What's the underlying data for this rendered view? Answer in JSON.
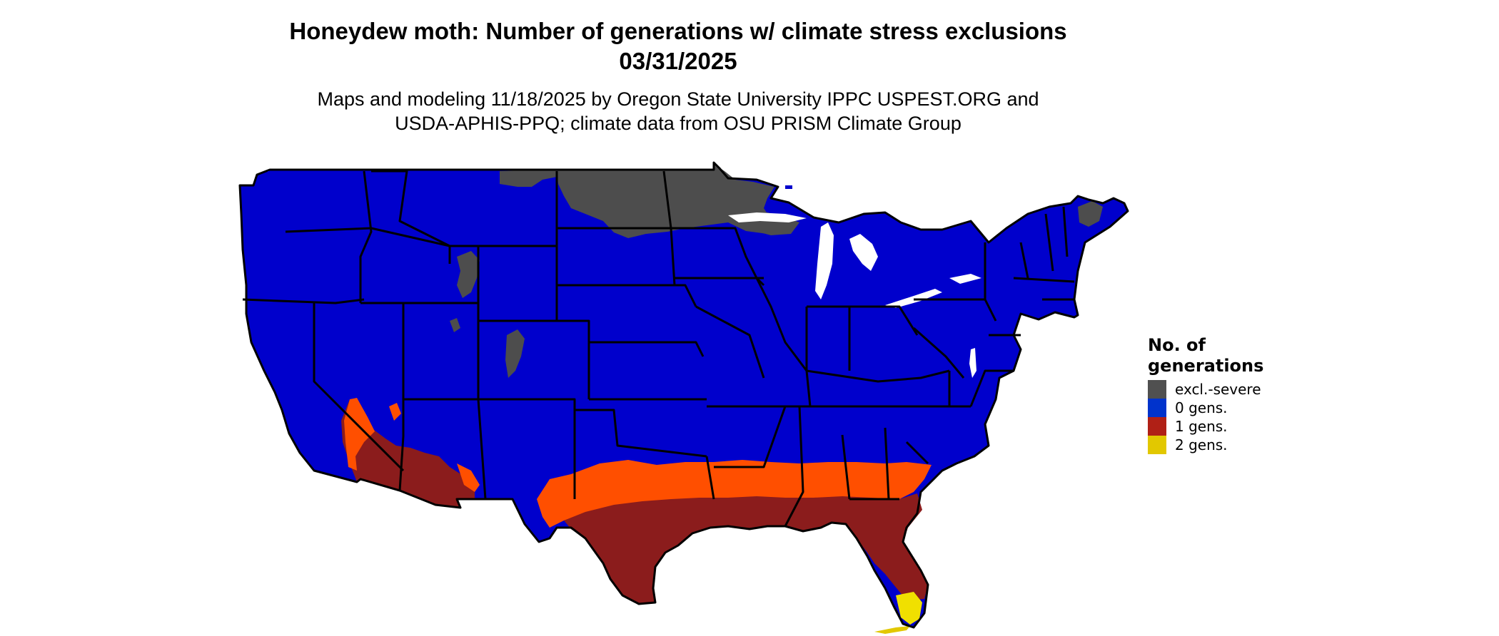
{
  "header": {
    "title_line1": "Honeydew moth: Number of generations w/ climate stress exclusions",
    "title_line2": "03/31/2025",
    "subtitle_line1": "Maps and modeling 11/18/2025 by Oregon State University IPPC USPEST.ORG and",
    "subtitle_line2": "USDA-APHIS-PPQ; climate data from OSU PRISM Climate Group"
  },
  "legend": {
    "title_line1": "No. of",
    "title_line2": "generations",
    "items": [
      {
        "label": "excl.-severe",
        "color": "#505050"
      },
      {
        "label": "0 gens.",
        "color": "#0033cc"
      },
      {
        "label": "1 gens.",
        "color": "#b02016"
      },
      {
        "label": "2 gens.",
        "color": "#e2c800"
      }
    ]
  },
  "map_colors": {
    "zero_gens": "#0000cc",
    "excluded": "#4d4d4d",
    "one_gen_dark": "#8b1c1c",
    "one_gen_orange": "#ff4f00",
    "two_gens": "#f0e000",
    "borders": "#000000",
    "background": "#ffffff"
  }
}
